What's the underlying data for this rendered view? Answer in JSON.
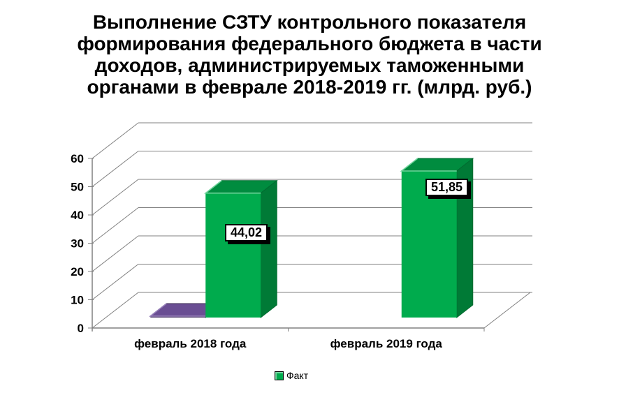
{
  "title": {
    "lines": [
      "Выполнение СЗТУ контрольного показателя",
      "формирования федерального бюджета в части",
      "доходов, администрируемых таможенными",
      "органами в феврале 2018-2019 гг. (млрд. руб.)"
    ]
  },
  "chart_data": {
    "type": "bar",
    "projection": "3d",
    "title": "Выполнение СЗТУ контрольного показателя формирования федерального бюджета в части доходов, администрируемых таможенными органами в феврале 2018-2019 гг. (млрд. руб.)",
    "units": "млрд. руб.",
    "categories": [
      "февраль 2018 года",
      "февраль 2019 года"
    ],
    "series": [
      {
        "name": "",
        "values": [
          0.5,
          0
        ],
        "data_labels": [
          "",
          ""
        ],
        "colors": {
          "front": "#4C3968",
          "top": "#6A4E93",
          "side": "#4C3968",
          "edge": "#3A2A52",
          "highlight": "#957EB8"
        },
        "in_legend": false
      },
      {
        "name": "Факт",
        "values": [
          44.02,
          51.85
        ],
        "data_labels": [
          "44,02",
          "51,85"
        ],
        "colors": {
          "front": "#00AB4D",
          "top": "#008C3F",
          "side": "#007A36",
          "edge": "#006B30",
          "highlight": "#6FD49B"
        },
        "in_legend": true
      }
    ],
    "y_ticks": [
      0,
      10,
      20,
      30,
      40,
      50,
      60
    ],
    "ylim": [
      0,
      60
    ],
    "grid": true,
    "legend": {
      "position": "bottom",
      "items": [
        {
          "label": "Факт",
          "color": "#00AB4D"
        }
      ]
    }
  },
  "colors": {
    "background": "#ffffff",
    "grid": "#808080",
    "axis": "#808080",
    "text": "#000000",
    "label_box_bg": "#ffffff",
    "label_box_border": "#000000"
  }
}
